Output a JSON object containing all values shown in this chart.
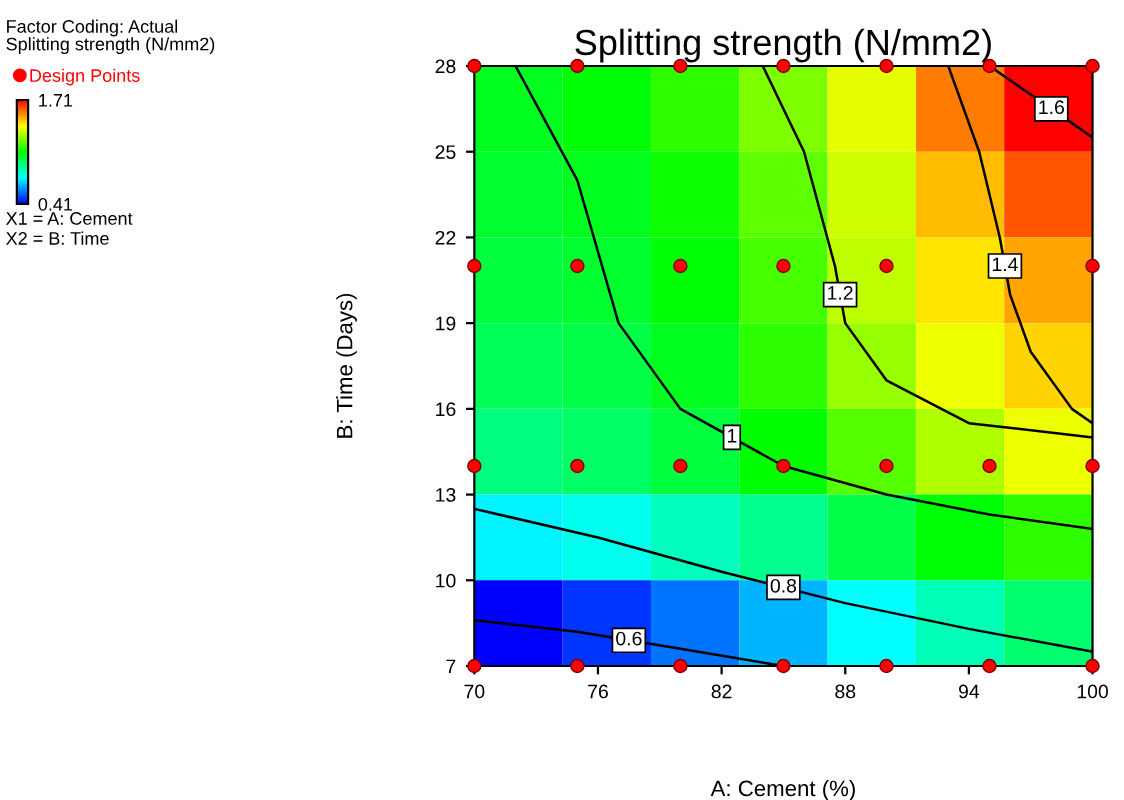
{
  "chart_data": {
    "type": "heatmap",
    "title": "Splitting strength (N/mm2)",
    "xlabel": "A: Cement (%)",
    "ylabel": "B: Time (Days)",
    "clabel": "Splitting strength (N/mm2)",
    "xlim": [
      70,
      100
    ],
    "ylim": [
      7,
      28
    ],
    "xticks": [
      70,
      76,
      82,
      88,
      94,
      100
    ],
    "yticks": [
      7,
      10,
      13,
      16,
      19,
      22,
      25,
      28
    ],
    "clim": [
      0.41,
      1.71
    ],
    "cticks": [
      0.41,
      1.71
    ],
    "colors": [
      "#0000ff",
      "#00ffff",
      "#00ff00",
      "#ffff00",
      "#ff0000"
    ],
    "cells": [
      [
        1.02,
        1.05,
        1.12,
        1.22,
        1.35,
        1.55,
        1.71
      ],
      [
        1.0,
        1.02,
        1.08,
        1.18,
        1.32,
        1.47,
        1.6
      ],
      [
        0.98,
        1.0,
        1.05,
        1.15,
        1.3,
        1.42,
        1.5
      ],
      [
        0.95,
        0.97,
        1.02,
        1.12,
        1.25,
        1.36,
        1.44
      ],
      [
        0.9,
        0.93,
        0.98,
        1.06,
        1.17,
        1.28,
        1.36
      ],
      [
        0.72,
        0.76,
        0.82,
        0.88,
        0.97,
        1.05,
        1.12
      ],
      [
        0.41,
        0.48,
        0.56,
        0.64,
        0.74,
        0.83,
        0.92
      ]
    ],
    "series": [
      {
        "type": "line",
        "name": "0.6",
        "color": "#000000",
        "x": [
          70,
          75,
          80,
          85
        ],
        "values": [
          8.6,
          8.2,
          7.6,
          7.0
        ]
      },
      {
        "type": "line",
        "name": "0.8",
        "color": "#000000",
        "x": [
          70,
          76,
          82,
          88,
          94,
          100
        ],
        "values": [
          12.5,
          11.5,
          10.3,
          9.2,
          8.3,
          7.5
        ]
      },
      {
        "type": "line",
        "name": "1",
        "color": "#000000",
        "x": [
          72,
          75,
          77,
          80,
          85,
          90,
          95,
          100
        ],
        "values": [
          28,
          24,
          19,
          16,
          14,
          13,
          12.3,
          11.8
        ]
      },
      {
        "type": "line",
        "name": "1.2",
        "color": "#000000",
        "x": [
          84,
          86,
          87.5,
          88,
          90,
          94,
          100
        ],
        "values": [
          28,
          25,
          21,
          19,
          17,
          15.5,
          15
        ]
      },
      {
        "type": "line",
        "name": "1.4",
        "color": "#000000",
        "x": [
          93,
          94.5,
          95.5,
          96,
          97,
          99,
          100
        ],
        "values": [
          28,
          25,
          22,
          20,
          18,
          16,
          15.5
        ]
      },
      {
        "type": "line",
        "name": "1.6",
        "color": "#000000",
        "x": [
          95,
          97,
          99,
          100
        ],
        "values": [
          28,
          27,
          26,
          25.5
        ]
      },
      {
        "type": "scatter",
        "name": "Design Points",
        "color": "#ff0000",
        "marker": "circle",
        "x": [
          70,
          75,
          80,
          85,
          90,
          95,
          100,
          70,
          75,
          80,
          85,
          90,
          95,
          100,
          70,
          75,
          80,
          85,
          90,
          95,
          100,
          70,
          75,
          80,
          85,
          90,
          95,
          100
        ],
        "values": [
          7,
          7,
          7,
          7,
          7,
          7,
          7,
          14,
          14,
          14,
          14,
          14,
          14,
          14,
          21,
          21,
          21,
          21,
          21,
          null,
          21,
          28,
          28,
          28,
          28,
          28,
          28,
          28
        ]
      }
    ],
    "legend": "top left",
    "annotations": [
      "Factor Coding: Actual",
      "X1 = A: Cement",
      "X2 = B: Time"
    ]
  }
}
